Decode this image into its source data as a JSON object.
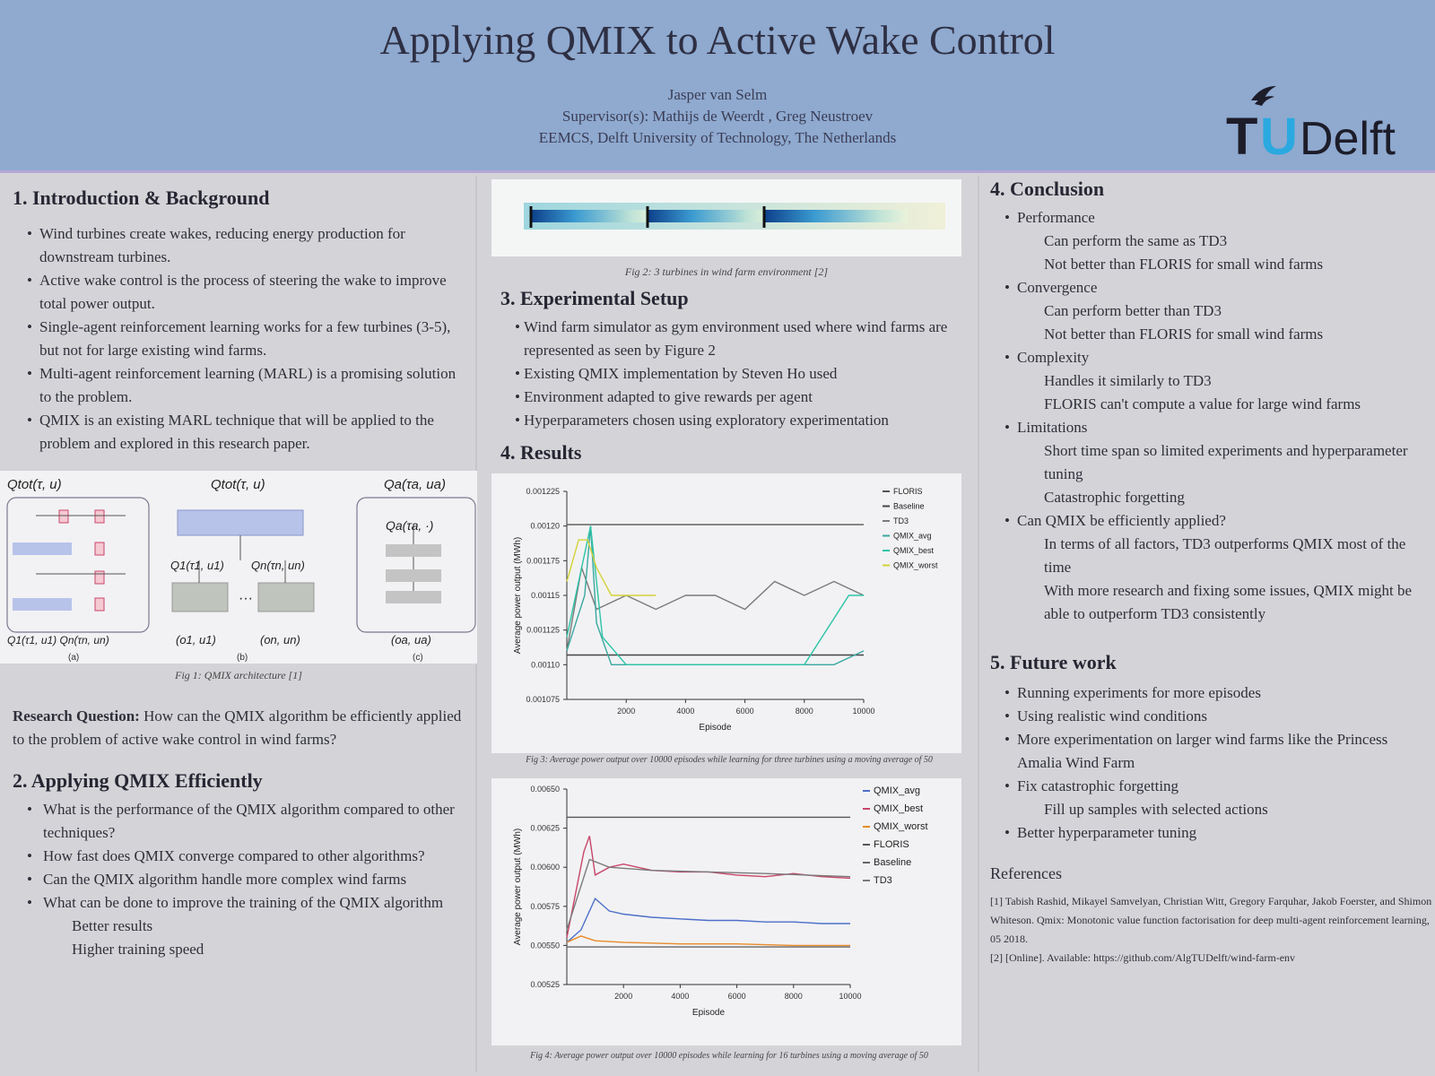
{
  "header": {
    "title": "Applying QMIX to Active Wake Control",
    "author": "Jasper van Selm",
    "supervisors": "Supervisor(s): Mathijs de Weerdt , Greg Neustroev",
    "affiliation": "EEMCS, Delft University of Technology, The Netherlands",
    "logo_text": "TUDelft"
  },
  "intro": {
    "heading": "1. Introduction & Background",
    "bullets": [
      "Wind turbines create wakes, reducing energy production for downstream turbines.",
      "Active wake control is the process of steering the wake to improve total power output.",
      "Single-agent reinforcement learning works for a few turbines (3-5), but not for large existing wind farms.",
      "Multi-agent reinforcement learning (MARL) is a promising solution to the problem.",
      "QMIX is an existing MARL technique that will be applied to the problem and explored in this research paper."
    ],
    "fig1_caption": "Fig 1: QMIX architecture [1]",
    "fig1_labels": [
      "(a)",
      "(b)",
      "(c)"
    ],
    "rq_label": "Research Question:",
    "rq_text": " How can the QMIX algorithm be efficiently applied to the problem of active wake control in wind farms?"
  },
  "applying": {
    "heading": "2. Applying QMIX Efficiently",
    "bullets": [
      "What is the performance of the QMIX algorithm compared to other techniques?",
      "How fast does QMIX converge compared to other algorithms?",
      "Can the QMIX algorithm handle more complex wind farms",
      "What can be done to improve the training of the QMIX algorithm"
    ],
    "subs": [
      "Better results",
      "Higher training speed"
    ]
  },
  "middle": {
    "fig2_caption": "Fig 2: 3 turbines in wind farm environment [2]",
    "setup_heading": "3. Experimental Setup",
    "setup_bullets": [
      "Wind farm simulator as gym environment used where wind farms are represented as seen by Figure 2",
      "Existing QMIX implementation by Steven Ho used",
      "Environment adapted to give rewards per agent",
      "Hyperparameters chosen using exploratory experimentation"
    ],
    "results_heading": "4. Results",
    "fig3_caption": "Fig 3: Average power output over 10000 episodes while learning for three turbines using a moving average of 50",
    "fig4_caption": "Fig 4: Average power output over 10000 episodes while learning for 16 turbines using a moving average of 50"
  },
  "conclusion": {
    "heading": "4. Conclusion",
    "items": [
      {
        "label": "Performance",
        "subs": [
          "Can perform the same as TD3",
          "Not better than FLORIS for small wind farms"
        ]
      },
      {
        "label": "Convergence",
        "subs": [
          "Can perform better than TD3",
          "Not better than FLORIS for small wind farms"
        ]
      },
      {
        "label": "Complexity",
        "subs": [
          "Handles it similarly to TD3",
          "FLORIS can't compute a value for large wind farms"
        ]
      },
      {
        "label": "Limitations",
        "subs": [
          "Short time span so limited experiments and hyperparameter tuning",
          "Catastrophic forgetting"
        ]
      },
      {
        "label": "Can QMIX be efficiently applied?",
        "subs": [
          "In terms of all factors, TD3 outperforms QMIX most of the time",
          "With more research and fixing some issues, QMIX might be able to outperform TD3 consistently"
        ]
      }
    ]
  },
  "future": {
    "heading": "5. Future work",
    "bullets": [
      "Running experiments for more episodes",
      "Using realistic wind conditions",
      "More experimentation on larger wind farms like the Princess Amalia Wind Farm",
      "Fix catastrophic forgetting"
    ],
    "sub_after_4": "Fill up samples with selected actions",
    "last_bullet": "Better hyperparameter tuning"
  },
  "references": {
    "heading": "References",
    "items": [
      "[1] Tabish Rashid, Mikayel Samvelyan, Christian Witt, Gregory Farquhar, Jakob Foerster, and Shimon Whiteson. Qmix: Monotonic value function factorisation for deep multi-agent reinforcement learning, 05 2018.",
      "[2] [Online]. Available: https://github.com/AlgTUDelft/wind-farm-env"
    ]
  },
  "chart_data": [
    {
      "type": "line",
      "title": "",
      "xlabel": "Episode",
      "ylabel": "Average power output (MWh)",
      "xlim": [
        0,
        10000
      ],
      "ylim": [
        0.001075,
        0.001225
      ],
      "xticks": [
        2000,
        4000,
        6000,
        8000,
        10000
      ],
      "yticks": [
        "0.001075",
        "0.00110",
        "0.001125",
        "0.00115",
        "0.001175",
        "0.00120",
        "0.001225"
      ],
      "legend_position": "top-right",
      "series": [
        {
          "name": "FLORIS",
          "color": "#555555",
          "points": [
            [
              0,
              0.001201
            ],
            [
              10000,
              0.001201
            ]
          ]
        },
        {
          "name": "Baseline",
          "color": "#444444",
          "points": [
            [
              0,
              0.001107
            ],
            [
              10000,
              0.001107
            ]
          ]
        },
        {
          "name": "TD3",
          "color": "#7a7a7a",
          "points": [
            [
              0,
              0.00111
            ],
            [
              500,
              0.00117
            ],
            [
              1000,
              0.00114
            ],
            [
              2000,
              0.00115
            ],
            [
              3000,
              0.00114
            ],
            [
              4000,
              0.00115
            ],
            [
              5000,
              0.00115
            ],
            [
              6000,
              0.00114
            ],
            [
              7000,
              0.00116
            ],
            [
              8000,
              0.00115
            ],
            [
              9000,
              0.00116
            ],
            [
              10000,
              0.00115
            ]
          ]
        },
        {
          "name": "QMIX_avg",
          "color": "#3aa8a0",
          "points": [
            [
              0,
              0.00111
            ],
            [
              600,
              0.00115
            ],
            [
              800,
              0.0012
            ],
            [
              1000,
              0.00113
            ],
            [
              1500,
              0.0011
            ],
            [
              2000,
              0.0011
            ],
            [
              3000,
              0.0011
            ],
            [
              4000,
              0.0011
            ],
            [
              5000,
              0.0011
            ],
            [
              6000,
              0.0011
            ],
            [
              7000,
              0.0011
            ],
            [
              8000,
              0.0011
            ],
            [
              9000,
              0.0011
            ],
            [
              10000,
              0.00111
            ]
          ]
        },
        {
          "name": "QMIX_best",
          "color": "#2ec4a6",
          "points": [
            [
              0,
              0.00112
            ],
            [
              500,
              0.00117
            ],
            [
              800,
              0.0012
            ],
            [
              1200,
              0.00112
            ],
            [
              2000,
              0.0011
            ],
            [
              5000,
              0.0011
            ],
            [
              8000,
              0.0011
            ],
            [
              9500,
              0.00115
            ],
            [
              10000,
              0.00115
            ]
          ]
        },
        {
          "name": "QMIX_worst",
          "color": "#d4d23a",
          "points": [
            [
              0,
              0.00116
            ],
            [
              400,
              0.00119
            ],
            [
              700,
              0.00119
            ],
            [
              1000,
              0.00117
            ],
            [
              1500,
              0.00115
            ],
            [
              2200,
              0.00115
            ],
            [
              3000,
              0.00115
            ]
          ]
        }
      ]
    },
    {
      "type": "line",
      "title": "",
      "xlabel": "Episode",
      "ylabel": "Average power output (MWh)",
      "xlim": [
        0,
        10000
      ],
      "ylim": [
        0.00525,
        0.0065
      ],
      "xticks": [
        2000,
        4000,
        6000,
        8000,
        10000
      ],
      "yticks": [
        "0.00525",
        "0.00550",
        "0.00575",
        "0.00600",
        "0.00625",
        "0.00650"
      ],
      "legend_position": "top-right",
      "series": [
        {
          "name": "QMIX_avg",
          "color": "#4e6fc9",
          "points": [
            [
              0,
              0.00552
            ],
            [
              500,
              0.0056
            ],
            [
              1000,
              0.0058
            ],
            [
              1500,
              0.00572
            ],
            [
              2000,
              0.0057
            ],
            [
              3000,
              0.00568
            ],
            [
              4000,
              0.00567
            ],
            [
              5000,
              0.00566
            ],
            [
              6000,
              0.00566
            ],
            [
              7000,
              0.00565
            ],
            [
              8000,
              0.00565
            ],
            [
              9000,
              0.00564
            ],
            [
              10000,
              0.00564
            ]
          ]
        },
        {
          "name": "QMIX_best",
          "color": "#c9456a",
          "points": [
            [
              0,
              0.00555
            ],
            [
              600,
              0.0061
            ],
            [
              800,
              0.0062
            ],
            [
              1000,
              0.00595
            ],
            [
              1500,
              0.006
            ],
            [
              2000,
              0.00602
            ],
            [
              3000,
              0.00598
            ],
            [
              4000,
              0.00597
            ],
            [
              5000,
              0.00597
            ],
            [
              6000,
              0.00595
            ],
            [
              7000,
              0.00594
            ],
            [
              8000,
              0.00596
            ],
            [
              9000,
              0.00594
            ],
            [
              10000,
              0.00593
            ]
          ]
        },
        {
          "name": "QMIX_worst",
          "color": "#e88a2a",
          "points": [
            [
              0,
              0.00552
            ],
            [
              500,
              0.00556
            ],
            [
              1000,
              0.00553
            ],
            [
              2000,
              0.00552
            ],
            [
              4000,
              0.00551
            ],
            [
              6000,
              0.00551
            ],
            [
              8000,
              0.0055
            ],
            [
              10000,
              0.0055
            ]
          ]
        },
        {
          "name": "FLORIS",
          "color": "#555555",
          "points": [
            [
              0,
              0.00632
            ],
            [
              10000,
              0.00632
            ]
          ]
        },
        {
          "name": "Baseline",
          "color": "#666666",
          "points": [
            [
              0,
              0.00549
            ],
            [
              10000,
              0.00549
            ]
          ]
        },
        {
          "name": "TD3",
          "color": "#7a7a7a",
          "points": [
            [
              0,
              0.0056
            ],
            [
              800,
              0.00605
            ],
            [
              1500,
              0.006
            ],
            [
              3000,
              0.00598
            ],
            [
              5000,
              0.00597
            ],
            [
              7000,
              0.00596
            ],
            [
              10000,
              0.00594
            ]
          ]
        }
      ]
    }
  ]
}
